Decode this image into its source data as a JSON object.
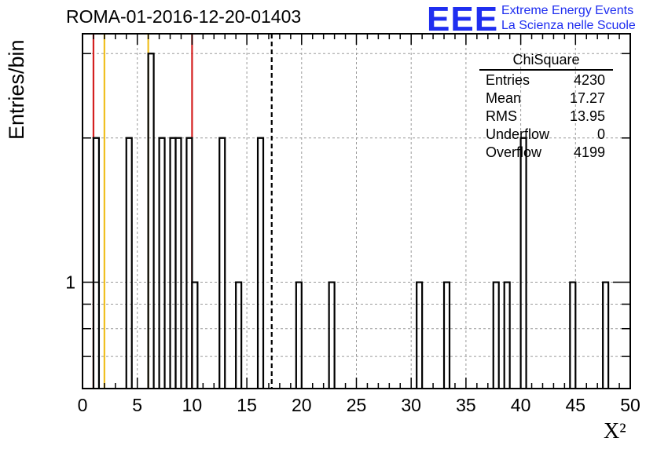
{
  "title": "ROMA-01-2016-12-20-01403",
  "logo": {
    "mark": "EEE",
    "line1": "Extreme Energy Events",
    "line2": "La Scienza nelle Scuole",
    "color": "#1f2ef0"
  },
  "stats_box": {
    "title": "ChiSquare",
    "rows": [
      {
        "label": "Entries",
        "value": "4230"
      },
      {
        "label": "Mean",
        "value": "17.27"
      },
      {
        "label": "RMS",
        "value": "13.95"
      },
      {
        "label": "Underflow",
        "value": "0"
      },
      {
        "label": "Overflow",
        "value": "4199"
      }
    ]
  },
  "chart_data": {
    "type": "bar",
    "histogram_style": "step",
    "xlabel": "X²",
    "ylabel": "Entries/bin",
    "xlim": [
      0,
      50
    ],
    "ylog": true,
    "ylim": [
      0.6,
      3.3
    ],
    "grid": true,
    "x_ticks": [
      "0",
      "5",
      "10",
      "15",
      "20",
      "25",
      "30",
      "35",
      "40",
      "45",
      "50"
    ],
    "y_ticks": [
      "1"
    ],
    "bin_width": 0.5,
    "bins": [
      {
        "x": 1.0,
        "count": 2
      },
      {
        "x": 4.0,
        "count": 2
      },
      {
        "x": 6.0,
        "count": 3
      },
      {
        "x": 7.0,
        "count": 2
      },
      {
        "x": 8.0,
        "count": 2
      },
      {
        "x": 8.5,
        "count": 2
      },
      {
        "x": 9.5,
        "count": 2
      },
      {
        "x": 10.0,
        "count": 1
      },
      {
        "x": 12.5,
        "count": 2
      },
      {
        "x": 14.0,
        "count": 1
      },
      {
        "x": 16.0,
        "count": 2
      },
      {
        "x": 19.5,
        "count": 1
      },
      {
        "x": 22.5,
        "count": 1
      },
      {
        "x": 30.5,
        "count": 1
      },
      {
        "x": 33.0,
        "count": 1
      },
      {
        "x": 37.5,
        "count": 1
      },
      {
        "x": 38.5,
        "count": 1
      },
      {
        "x": 40.0,
        "count": 2
      },
      {
        "x": 44.5,
        "count": 1
      },
      {
        "x": 47.5,
        "count": 1
      }
    ],
    "vertical_lines": [
      {
        "x": 1.0,
        "color": "#d42020",
        "style": "solid"
      },
      {
        "x": 2.0,
        "color": "#f0c020",
        "style": "solid"
      },
      {
        "x": 6.0,
        "color": "#f0c020",
        "style": "solid"
      },
      {
        "x": 10.0,
        "color": "#d42020",
        "style": "solid"
      },
      {
        "x": 17.27,
        "color": "#000000",
        "style": "dashed"
      }
    ]
  }
}
